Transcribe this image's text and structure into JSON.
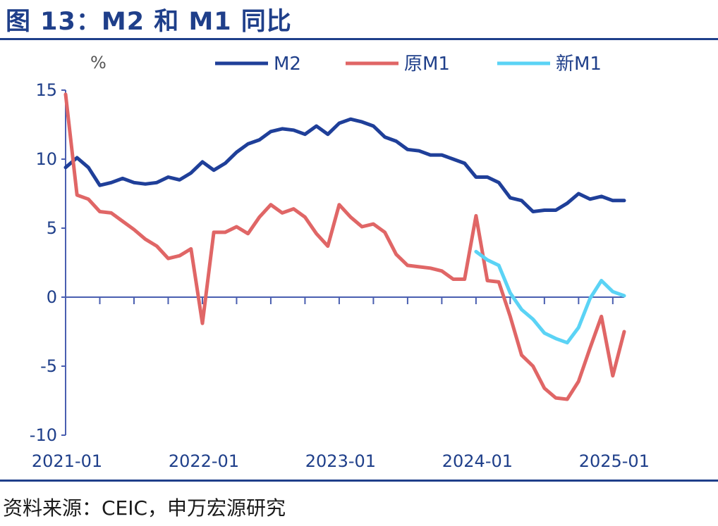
{
  "figure_title": "图 13：M2 和 M1 同比",
  "source_note": "资料来源：CEIC，申万宏源研究",
  "chart_data": {
    "type": "line",
    "unit_label": "%",
    "ylim": [
      -10,
      15
    ],
    "yticks": [
      15,
      10,
      5,
      0,
      -5,
      -10
    ],
    "ytick_labels": [
      "15",
      "10",
      "5",
      "0",
      "-5",
      "-10"
    ],
    "xlim": [
      "2021-01",
      "2025-02"
    ],
    "x_tick_labels": [
      "2021-01",
      "2022-01",
      "2023-01",
      "2024-01",
      "2025-01"
    ],
    "grid": false,
    "legend_position": "top",
    "x": [
      "2021-01",
      "2021-02",
      "2021-03",
      "2021-04",
      "2021-05",
      "2021-06",
      "2021-07",
      "2021-08",
      "2021-09",
      "2021-10",
      "2021-11",
      "2021-12",
      "2022-01",
      "2022-02",
      "2022-03",
      "2022-04",
      "2022-05",
      "2022-06",
      "2022-07",
      "2022-08",
      "2022-09",
      "2022-10",
      "2022-11",
      "2022-12",
      "2023-01",
      "2023-02",
      "2023-03",
      "2023-04",
      "2023-05",
      "2023-06",
      "2023-07",
      "2023-08",
      "2023-09",
      "2023-10",
      "2023-11",
      "2023-12",
      "2024-01",
      "2024-02",
      "2024-03",
      "2024-04",
      "2024-05",
      "2024-06",
      "2024-07",
      "2024-08",
      "2024-09",
      "2024-10",
      "2024-11",
      "2024-12",
      "2025-01",
      "2025-02"
    ],
    "series": [
      {
        "name": "M2",
        "color": "#1f3f99",
        "values": [
          9.4,
          10.1,
          9.4,
          8.1,
          8.3,
          8.6,
          8.3,
          8.2,
          8.3,
          8.7,
          8.5,
          9.0,
          9.8,
          9.2,
          9.7,
          10.5,
          11.1,
          11.4,
          12.0,
          12.2,
          12.1,
          11.8,
          12.4,
          11.8,
          12.6,
          12.9,
          12.7,
          12.4,
          11.6,
          11.3,
          10.7,
          10.6,
          10.3,
          10.3,
          10.0,
          9.7,
          8.7,
          8.7,
          8.3,
          7.2,
          7.0,
          6.2,
          6.3,
          6.3,
          6.8,
          7.5,
          7.1,
          7.3,
          7.0,
          7.0
        ]
      },
      {
        "name": "原M1",
        "color": "#e06666",
        "values": [
          14.7,
          7.4,
          7.1,
          6.2,
          6.1,
          5.5,
          4.9,
          4.2,
          3.7,
          2.8,
          3.0,
          3.5,
          -1.9,
          4.7,
          4.7,
          5.1,
          4.6,
          5.8,
          6.7,
          6.1,
          6.4,
          5.8,
          4.6,
          3.7,
          6.7,
          5.8,
          5.1,
          5.3,
          4.7,
          3.1,
          2.3,
          2.2,
          2.1,
          1.9,
          1.3,
          1.3,
          5.9,
          1.2,
          1.1,
          -1.4,
          -4.2,
          -5.0,
          -6.6,
          -7.3,
          -7.4,
          -6.1,
          -3.7,
          -1.4,
          -5.7,
          -2.5
        ]
      },
      {
        "name": "新M1",
        "color": "#5bd3f5",
        "values": [
          null,
          null,
          null,
          null,
          null,
          null,
          null,
          null,
          null,
          null,
          null,
          null,
          null,
          null,
          null,
          null,
          null,
          null,
          null,
          null,
          null,
          null,
          null,
          null,
          null,
          null,
          null,
          null,
          null,
          null,
          null,
          null,
          null,
          null,
          null,
          null,
          3.3,
          2.7,
          2.3,
          0.3,
          -0.9,
          -1.6,
          -2.6,
          -3.0,
          -3.3,
          -2.2,
          -0.1,
          1.2,
          0.4,
          0.1
        ]
      }
    ]
  }
}
